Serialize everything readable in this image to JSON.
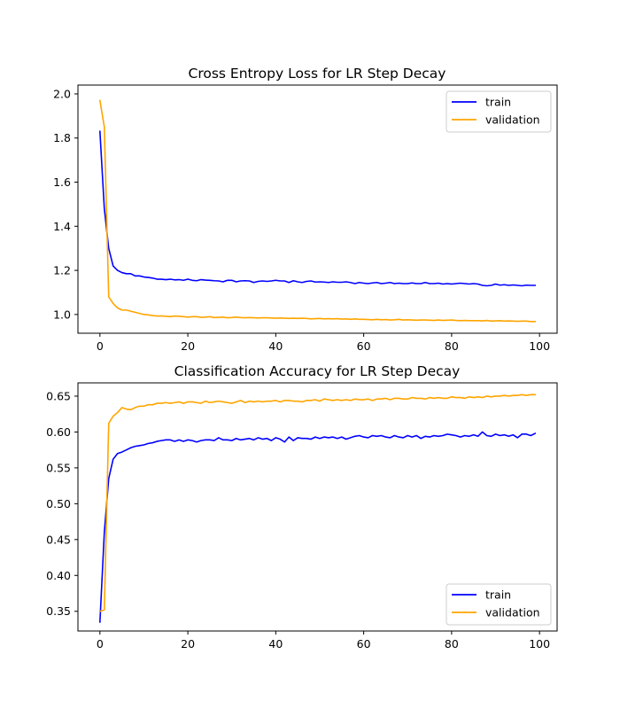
{
  "chart_data": [
    {
      "type": "line",
      "title": "Cross Entropy Loss for LR Step Decay",
      "xlabel": "",
      "ylabel": "",
      "xlim": [
        -5,
        104
      ],
      "ylim": [
        0.915,
        2.04
      ],
      "xticks": [
        0,
        20,
        40,
        60,
        80,
        100
      ],
      "xtick_labels": [
        "0",
        "20",
        "40",
        "60",
        "80",
        "100"
      ],
      "yticks": [
        1.0,
        1.2,
        1.4,
        1.6,
        1.8,
        2.0
      ],
      "ytick_labels": [
        "1.0",
        "1.2",
        "1.4",
        "1.6",
        "1.8",
        "2.0"
      ],
      "grid": false,
      "legend_position": "upper right",
      "series": [
        {
          "name": "train",
          "color": "#0000ff",
          "x": [
            0,
            1,
            2,
            3,
            4,
            5,
            6,
            7,
            8,
            9,
            10,
            11,
            12,
            13,
            14,
            15,
            16,
            17,
            18,
            19,
            20,
            21,
            22,
            23,
            24,
            25,
            26,
            27,
            28,
            29,
            30,
            31,
            32,
            33,
            34,
            35,
            36,
            37,
            38,
            39,
            40,
            41,
            42,
            43,
            44,
            45,
            46,
            47,
            48,
            49,
            50,
            51,
            52,
            53,
            54,
            55,
            56,
            57,
            58,
            59,
            60,
            61,
            62,
            63,
            64,
            65,
            66,
            67,
            68,
            69,
            70,
            71,
            72,
            73,
            74,
            75,
            76,
            77,
            78,
            79,
            80,
            81,
            82,
            83,
            84,
            85,
            86,
            87,
            88,
            89,
            90,
            91,
            92,
            93,
            94,
            95,
            96,
            97,
            98,
            99
          ],
          "values": [
            1.83,
            1.48,
            1.3,
            1.22,
            1.2,
            1.19,
            1.185,
            1.185,
            1.175,
            1.175,
            1.17,
            1.168,
            1.165,
            1.16,
            1.16,
            1.158,
            1.16,
            1.157,
            1.158,
            1.155,
            1.16,
            1.155,
            1.153,
            1.158,
            1.156,
            1.155,
            1.153,
            1.152,
            1.148,
            1.155,
            1.155,
            1.148,
            1.152,
            1.153,
            1.152,
            1.145,
            1.15,
            1.152,
            1.15,
            1.152,
            1.155,
            1.152,
            1.152,
            1.145,
            1.153,
            1.148,
            1.145,
            1.15,
            1.152,
            1.147,
            1.148,
            1.147,
            1.145,
            1.148,
            1.146,
            1.146,
            1.148,
            1.145,
            1.14,
            1.145,
            1.142,
            1.14,
            1.143,
            1.145,
            1.14,
            1.142,
            1.145,
            1.14,
            1.142,
            1.14,
            1.14,
            1.143,
            1.14,
            1.14,
            1.145,
            1.14,
            1.14,
            1.142,
            1.138,
            1.14,
            1.138,
            1.14,
            1.142,
            1.14,
            1.138,
            1.14,
            1.138,
            1.132,
            1.13,
            1.132,
            1.138,
            1.133,
            1.135,
            1.132,
            1.134,
            1.132,
            1.13,
            1.133,
            1.132,
            1.132
          ]
        },
        {
          "name": "validation",
          "color": "#ffa500",
          "x": [
            0,
            1,
            2,
            3,
            4,
            5,
            6,
            7,
            8,
            9,
            10,
            11,
            12,
            13,
            14,
            15,
            16,
            17,
            18,
            19,
            20,
            21,
            22,
            23,
            24,
            25,
            26,
            27,
            28,
            29,
            30,
            31,
            32,
            33,
            34,
            35,
            36,
            37,
            38,
            39,
            40,
            41,
            42,
            43,
            44,
            45,
            46,
            47,
            48,
            49,
            50,
            51,
            52,
            53,
            54,
            55,
            56,
            57,
            58,
            59,
            60,
            61,
            62,
            63,
            64,
            65,
            66,
            67,
            68,
            69,
            70,
            71,
            72,
            73,
            74,
            75,
            76,
            77,
            78,
            79,
            80,
            81,
            82,
            83,
            84,
            85,
            86,
            87,
            88,
            89,
            90,
            91,
            92,
            93,
            94,
            95,
            96,
            97,
            98,
            99
          ],
          "values": [
            1.97,
            1.85,
            1.08,
            1.05,
            1.03,
            1.02,
            1.02,
            1.015,
            1.01,
            1.005,
            1.0,
            0.998,
            0.995,
            0.993,
            0.993,
            0.992,
            0.99,
            0.993,
            0.992,
            0.99,
            0.988,
            0.99,
            0.99,
            0.987,
            0.988,
            0.99,
            0.986,
            0.987,
            0.988,
            0.985,
            0.986,
            0.988,
            0.986,
            0.985,
            0.986,
            0.985,
            0.984,
            0.985,
            0.985,
            0.984,
            0.983,
            0.984,
            0.983,
            0.982,
            0.983,
            0.982,
            0.983,
            0.982,
            0.98,
            0.981,
            0.982,
            0.98,
            0.981,
            0.98,
            0.981,
            0.979,
            0.98,
            0.978,
            0.98,
            0.978,
            0.978,
            0.977,
            0.976,
            0.978,
            0.976,
            0.977,
            0.975,
            0.976,
            0.978,
            0.975,
            0.976,
            0.975,
            0.974,
            0.975,
            0.975,
            0.974,
            0.973,
            0.975,
            0.973,
            0.974,
            0.975,
            0.973,
            0.972,
            0.973,
            0.972,
            0.972,
            0.972,
            0.971,
            0.973,
            0.97,
            0.971,
            0.972,
            0.97,
            0.971,
            0.97,
            0.969,
            0.97,
            0.97,
            0.968,
            0.968
          ]
        }
      ]
    },
    {
      "type": "line",
      "title": "Classification Accuracy for LR Step Decay",
      "xlabel": "",
      "ylabel": "",
      "xlim": [
        -5,
        104
      ],
      "ylim": [
        0.3225,
        0.6685
      ],
      "xticks": [
        0,
        20,
        40,
        60,
        80,
        100
      ],
      "xtick_labels": [
        "0",
        "20",
        "40",
        "60",
        "80",
        "100"
      ],
      "yticks": [
        0.35,
        0.4,
        0.45,
        0.5,
        0.55,
        0.6,
        0.65
      ],
      "ytick_labels": [
        "0.35",
        "0.40",
        "0.45",
        "0.50",
        "0.55",
        "0.60",
        "0.65"
      ],
      "grid": false,
      "legend_position": "lower right",
      "series": [
        {
          "name": "train",
          "color": "#0000ff",
          "x": [
            0,
            1,
            2,
            3,
            4,
            5,
            6,
            7,
            8,
            9,
            10,
            11,
            12,
            13,
            14,
            15,
            16,
            17,
            18,
            19,
            20,
            21,
            22,
            23,
            24,
            25,
            26,
            27,
            28,
            29,
            30,
            31,
            32,
            33,
            34,
            35,
            36,
            37,
            38,
            39,
            40,
            41,
            42,
            43,
            44,
            45,
            46,
            47,
            48,
            49,
            50,
            51,
            52,
            53,
            54,
            55,
            56,
            57,
            58,
            59,
            60,
            61,
            62,
            63,
            64,
            65,
            66,
            67,
            68,
            69,
            70,
            71,
            72,
            73,
            74,
            75,
            76,
            77,
            78,
            79,
            80,
            81,
            82,
            83,
            84,
            85,
            86,
            87,
            88,
            89,
            90,
            91,
            92,
            93,
            94,
            95,
            96,
            97,
            98,
            99
          ],
          "values": [
            0.335,
            0.46,
            0.535,
            0.562,
            0.57,
            0.572,
            0.575,
            0.578,
            0.58,
            0.581,
            0.582,
            0.584,
            0.585,
            0.587,
            0.588,
            0.589,
            0.589,
            0.587,
            0.589,
            0.587,
            0.589,
            0.588,
            0.586,
            0.588,
            0.589,
            0.589,
            0.588,
            0.592,
            0.589,
            0.589,
            0.588,
            0.591,
            0.589,
            0.59,
            0.591,
            0.589,
            0.592,
            0.59,
            0.591,
            0.588,
            0.592,
            0.59,
            0.586,
            0.593,
            0.588,
            0.592,
            0.591,
            0.591,
            0.59,
            0.593,
            0.591,
            0.593,
            0.592,
            0.593,
            0.591,
            0.593,
            0.59,
            0.592,
            0.594,
            0.595,
            0.593,
            0.592,
            0.595,
            0.594,
            0.595,
            0.593,
            0.592,
            0.595,
            0.593,
            0.592,
            0.595,
            0.593,
            0.595,
            0.591,
            0.594,
            0.593,
            0.595,
            0.594,
            0.595,
            0.597,
            0.596,
            0.595,
            0.593,
            0.595,
            0.594,
            0.596,
            0.594,
            0.6,
            0.595,
            0.594,
            0.597,
            0.595,
            0.596,
            0.594,
            0.596,
            0.592,
            0.597,
            0.597,
            0.595,
            0.598
          ]
        },
        {
          "name": "validation",
          "color": "#ffa500",
          "x": [
            0,
            1,
            2,
            3,
            4,
            5,
            6,
            7,
            8,
            9,
            10,
            11,
            12,
            13,
            14,
            15,
            16,
            17,
            18,
            19,
            20,
            21,
            22,
            23,
            24,
            25,
            26,
            27,
            28,
            29,
            30,
            31,
            32,
            33,
            34,
            35,
            36,
            37,
            38,
            39,
            40,
            41,
            42,
            43,
            44,
            45,
            46,
            47,
            48,
            49,
            50,
            51,
            52,
            53,
            54,
            55,
            56,
            57,
            58,
            59,
            60,
            61,
            62,
            63,
            64,
            65,
            66,
            67,
            68,
            69,
            70,
            71,
            72,
            73,
            74,
            75,
            76,
            77,
            78,
            79,
            80,
            81,
            82,
            83,
            84,
            85,
            86,
            87,
            88,
            89,
            90,
            91,
            92,
            93,
            94,
            95,
            96,
            97,
            98,
            99
          ],
          "values": [
            0.35,
            0.352,
            0.612,
            0.622,
            0.627,
            0.634,
            0.632,
            0.631,
            0.634,
            0.636,
            0.636,
            0.638,
            0.638,
            0.64,
            0.64,
            0.641,
            0.64,
            0.641,
            0.642,
            0.64,
            0.642,
            0.642,
            0.641,
            0.64,
            0.643,
            0.641,
            0.642,
            0.643,
            0.642,
            0.641,
            0.64,
            0.642,
            0.644,
            0.641,
            0.643,
            0.642,
            0.643,
            0.642,
            0.643,
            0.643,
            0.644,
            0.642,
            0.644,
            0.644,
            0.643,
            0.643,
            0.642,
            0.644,
            0.644,
            0.645,
            0.643,
            0.646,
            0.645,
            0.644,
            0.645,
            0.644,
            0.645,
            0.644,
            0.646,
            0.645,
            0.645,
            0.646,
            0.644,
            0.646,
            0.646,
            0.647,
            0.645,
            0.647,
            0.647,
            0.646,
            0.646,
            0.648,
            0.647,
            0.647,
            0.646,
            0.648,
            0.647,
            0.648,
            0.647,
            0.647,
            0.649,
            0.648,
            0.648,
            0.647,
            0.649,
            0.648,
            0.649,
            0.648,
            0.65,
            0.649,
            0.65,
            0.65,
            0.651,
            0.65,
            0.651,
            0.651,
            0.652,
            0.651,
            0.652,
            0.652
          ]
        }
      ]
    }
  ]
}
